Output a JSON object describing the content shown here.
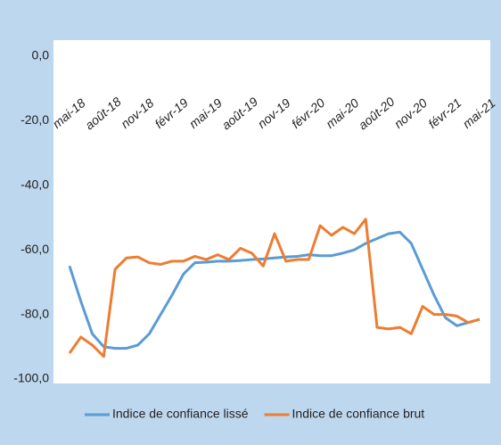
{
  "chart_data": {
    "type": "line",
    "categories": [
      "mai-18",
      null,
      null,
      "août-18",
      null,
      null,
      "nov-18",
      null,
      null,
      "févr-19",
      null,
      null,
      "mai-19",
      null,
      null,
      "août-19",
      null,
      null,
      "nov-19",
      null,
      null,
      "févr-20",
      null,
      null,
      "mai-20",
      null,
      null,
      "août-20",
      null,
      null,
      "nov-20",
      null,
      null,
      "févr-21",
      null,
      null,
      "mai-21"
    ],
    "series": [
      {
        "name": "Indice de confiance lissé",
        "color": "#5b9bd5",
        "values": [
          -65,
          -76,
          -86,
          -90,
          -90.5,
          -90.5,
          -89.5,
          -86,
          -80,
          -74,
          -67.5,
          -64,
          -63.8,
          -63.5,
          -63.5,
          -63.3,
          -63,
          -62.8,
          -62.5,
          -62.2,
          -62,
          -61.5,
          -61.8,
          -61.8,
          -61,
          -60,
          -58,
          -56.5,
          -55,
          -54.5,
          -58,
          -66,
          -74,
          -81,
          -83.5,
          -82.5,
          -81.5
        ]
      },
      {
        "name": "Indice de confiance brut",
        "color": "#ed7d31",
        "values": [
          -92,
          -87,
          -89.5,
          -93,
          -66,
          -62.5,
          -62.2,
          -64,
          -64.5,
          -63.5,
          -63.5,
          -62,
          -63,
          -61.5,
          -63,
          -59.5,
          -61,
          -65,
          -55,
          -63.5,
          -63,
          -63,
          -52.5,
          -55.5,
          -53,
          -55,
          -50.5,
          -84,
          -84.5,
          -84,
          -86,
          -77.5,
          -80,
          -80,
          -80.5,
          -82.5,
          -81.5
        ]
      }
    ],
    "ylim": [
      -100,
      0
    ],
    "yticks": [
      {
        "value": -100,
        "label": "-100,0"
      },
      {
        "value": -80,
        "label": "-80,0"
      },
      {
        "value": -60,
        "label": "-60,0"
      },
      {
        "value": -40,
        "label": "-40,0"
      },
      {
        "value": -20,
        "label": "-20,0"
      },
      {
        "value": 0,
        "label": "0,0"
      }
    ],
    "legend": "bottom"
  }
}
